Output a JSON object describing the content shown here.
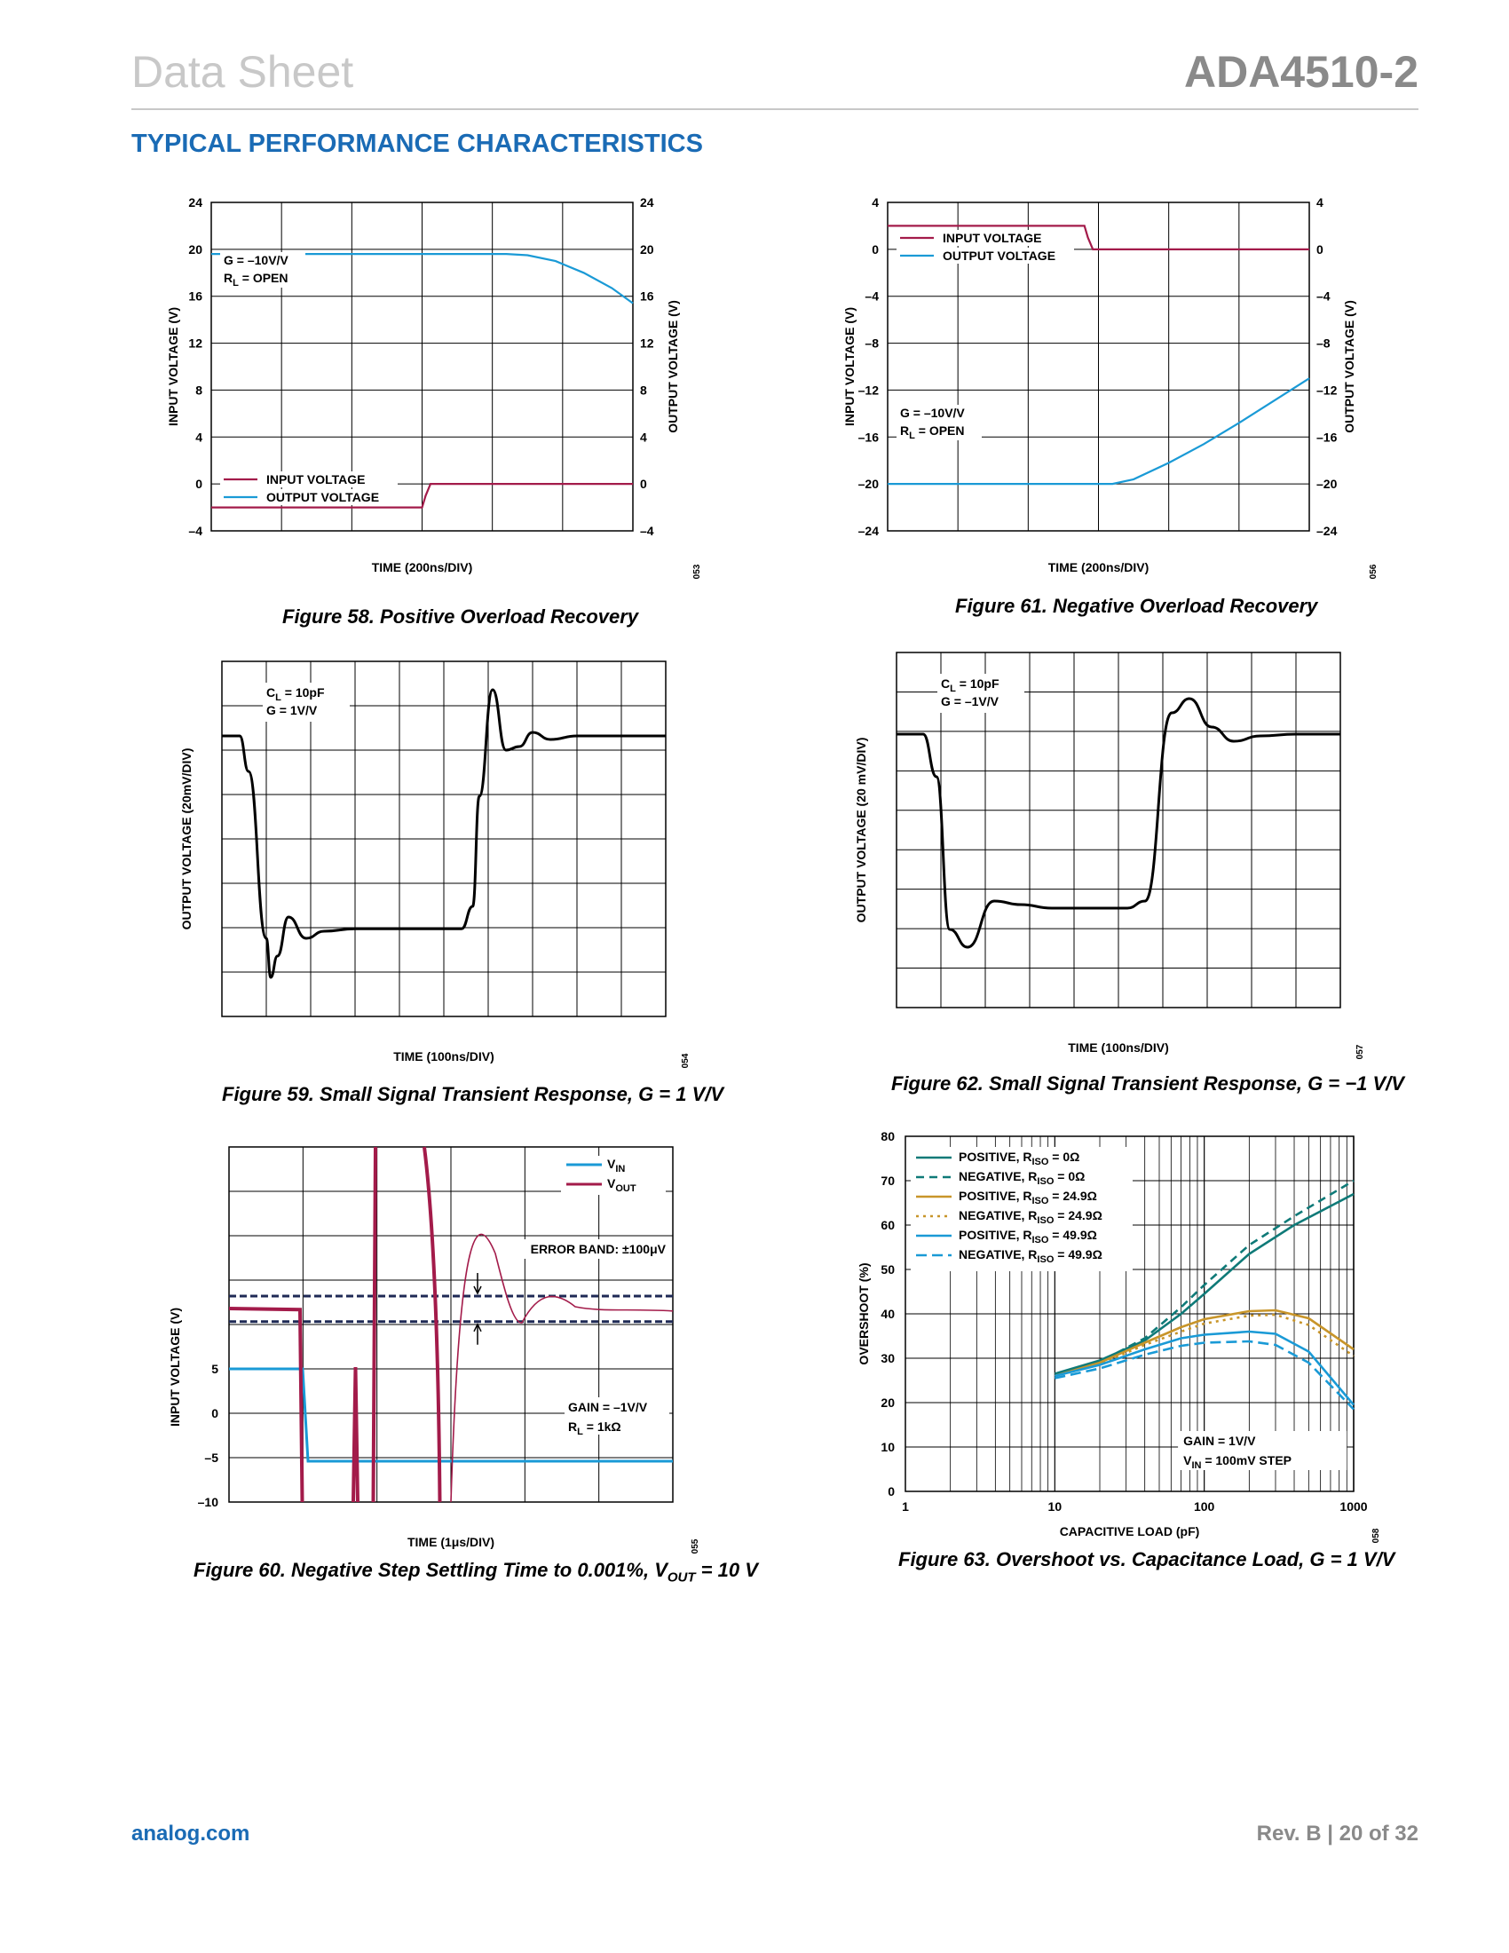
{
  "header": {
    "left": "Data Sheet",
    "right": "ADA4510-2"
  },
  "section_title": "TYPICAL PERFORMANCE CHARACTERISTICS",
  "footer": {
    "left": "analog.com",
    "right": "Rev. B | 20 of 32"
  },
  "colors": {
    "input": "#a31b4a",
    "output": "#1a9ad6",
    "teal": "#0f7a78",
    "gold": "#c8952a",
    "blue": "#1a9ad6",
    "accent": "#1a6bb5"
  },
  "captions": {
    "f58": "Figure 58. Positive Overload Recovery",
    "f59": "Figure 59. Small Signal Transient Response, G = 1 V/V",
    "f60_main": "Figure 60. Negative Step Settling Time to 0.001%, V",
    "f60_sub": "OUT",
    "f60_tail": " = 10 V",
    "f61": "Figure 61. Negative Overload Recovery",
    "f62": "Figure 62. Small Signal Transient Response, G = −1 V/V",
    "f63": "Figure 63. Overshoot vs. Capacitance Load, G = 1 V/V"
  },
  "codes": {
    "f58": "053",
    "f59": "054",
    "f60": "055",
    "f61": "056",
    "f62": "057",
    "f63": "058"
  },
  "chart_data": [
    {
      "id": "f58",
      "type": "line",
      "xlabel": "TIME (200ns/DIV)",
      "ylabel": "INPUT VOLTAGE (V)",
      "y2label": "OUTPUT VOLTAGE (V)",
      "yticks": [
        24,
        20,
        16,
        12,
        8,
        4,
        0,
        -4
      ],
      "ylim": [
        -4,
        24
      ],
      "x_divisions": 6,
      "annot": {
        "g": "G = –10V/V",
        "rl": "R",
        "rl_sub": "L",
        "rl_tail": " = OPEN"
      },
      "legend": [
        "INPUT VOLTAGE",
        "OUTPUT VOLTAGE"
      ],
      "series": [
        {
          "name": "INPUT VOLTAGE",
          "x": [
            0,
            3.0,
            3.05,
            3.12,
            6.0
          ],
          "y": [
            -2.0,
            -2.0,
            -1.0,
            0.0,
            0.0
          ]
        },
        {
          "name": "OUTPUT VOLTAGE",
          "x": [
            0,
            4.2,
            4.5,
            4.9,
            5.3,
            5.7,
            6.0
          ],
          "y": [
            19.6,
            19.6,
            19.5,
            19.0,
            18.0,
            16.7,
            15.4
          ]
        }
      ]
    },
    {
      "id": "f59",
      "type": "line",
      "xlabel": "TIME (100ns/DIV)",
      "ylabel": "OUTPUT VOLTAGE (20mV/DIV)",
      "x_divisions": 10,
      "y_divisions": 8,
      "annot": {
        "cl": "C",
        "cl_sub": "L",
        "cl_tail": " = 10pF",
        "g": "G = 1V/V"
      }
    },
    {
      "id": "f60",
      "type": "line",
      "xlabel": "TIME (1μs/DIV)",
      "ylabel": "INPUT VOLTAGE (V)",
      "yticks": [
        5,
        0,
        -5,
        -10
      ],
      "x_divisions": 6,
      "y_divisions": 8,
      "legend": [
        {
          "base": "V",
          "sub": "IN"
        },
        {
          "base": "V",
          "sub": "OUT"
        }
      ],
      "error_band": "ERROR BAND: ±100μV",
      "annot": {
        "g": "GAIN = –1V/V",
        "rl": "R",
        "rl_sub": "L",
        "rl_tail": " = 1kΩ"
      }
    },
    {
      "id": "f61",
      "type": "line",
      "xlabel": "TIME (200ns/DIV)",
      "ylabel": "INPUT VOLTAGE (V)",
      "y2label": "OUTPUT VOLTAGE (V)",
      "yticks": [
        4,
        0,
        -4,
        -8,
        -12,
        -16,
        -20,
        -24
      ],
      "ylim": [
        -24,
        4
      ],
      "x_divisions": 6,
      "annot": {
        "g": "G = –10V/V",
        "rl": "R",
        "rl_sub": "L",
        "rl_tail": " = OPEN"
      },
      "legend": [
        "INPUT VOLTAGE",
        "OUTPUT VOLTAGE"
      ],
      "series": [
        {
          "name": "INPUT VOLTAGE",
          "x": [
            0,
            2.8,
            2.85,
            2.92,
            6.0
          ],
          "y": [
            2.0,
            2.0,
            1.0,
            0.0,
            0.0
          ]
        },
        {
          "name": "OUTPUT VOLTAGE",
          "x": [
            0,
            3.2,
            3.5,
            4.0,
            4.5,
            5.0,
            5.5,
            6.0
          ],
          "y": [
            -20.0,
            -20.0,
            -19.6,
            -18.2,
            -16.6,
            -14.8,
            -12.9,
            -11.0
          ]
        }
      ]
    },
    {
      "id": "f62",
      "type": "line",
      "xlabel": "TIME (100ns/DIV)",
      "ylabel": "OUTPUT VOLTAGE (20 mV/DIV)",
      "x_divisions": 10,
      "y_divisions": 9,
      "annot": {
        "cl": "C",
        "cl_sub": "L",
        "cl_tail": " = 10pF",
        "g": "G = –1V/V"
      }
    },
    {
      "id": "f63",
      "type": "line",
      "xscale": "log",
      "xlabel": "CAPACITIVE LOAD (pF)",
      "ylabel": "OVERSHOOT (%)",
      "xticks": [
        1,
        10,
        100,
        1000
      ],
      "yticks": [
        80,
        70,
        60,
        50,
        40,
        30,
        20,
        10,
        0
      ],
      "xlim": [
        1,
        1000
      ],
      "ylim": [
        0,
        80
      ],
      "annot": {
        "g": "GAIN = 1V/V",
        "vin": "V",
        "vin_sub": "IN",
        "vin_tail": " = 100mV STEP"
      },
      "series": [
        {
          "name": "POSITIVE, R",
          "sub": "ISO",
          "tail": " = 0Ω",
          "color": "#0f7a78",
          "dash": "",
          "x": [
            10,
            20,
            40,
            70,
            100,
            200,
            400,
            1000
          ],
          "y": [
            26.5,
            29.5,
            34.0,
            40.0,
            44.5,
            53.5,
            60.0,
            67.0
          ]
        },
        {
          "name": "NEGATIVE, R",
          "sub": "ISO",
          "tail": " = 0Ω",
          "color": "#0f7a78",
          "dash": "9,6",
          "x": [
            10,
            20,
            40,
            70,
            100,
            200,
            400,
            1000
          ],
          "y": [
            26.0,
            29.2,
            34.5,
            41.5,
            46.5,
            55.5,
            62.0,
            70.0
          ]
        },
        {
          "name": "POSITIVE, R",
          "sub": "ISO",
          "tail": " = 24.9Ω",
          "color": "#c8952a",
          "dash": "",
          "x": [
            10,
            20,
            40,
            70,
            100,
            200,
            300,
            500,
            1000
          ],
          "y": [
            26.0,
            29.0,
            33.5,
            37.0,
            38.8,
            40.6,
            40.8,
            39.0,
            32.0
          ]
        },
        {
          "name": "NEGATIVE, R",
          "sub": "ISO",
          "tail": " = 24.9Ω",
          "color": "#c8952a",
          "dash": "3,5",
          "x": [
            10,
            20,
            40,
            70,
            100,
            200,
            300,
            500,
            1000
          ],
          "y": [
            26.0,
            28.7,
            33.0,
            36.0,
            37.8,
            39.6,
            39.8,
            37.5,
            30.5
          ]
        },
        {
          "name": "POSITIVE, R",
          "sub": "ISO",
          "tail": " = 49.9Ω",
          "color": "#1a9ad6",
          "dash": "",
          "x": [
            10,
            20,
            40,
            70,
            100,
            200,
            300,
            500,
            1000
          ],
          "y": [
            26.0,
            28.5,
            32.0,
            34.5,
            35.3,
            36.0,
            35.5,
            31.5,
            19.5
          ]
        },
        {
          "name": "NEGATIVE, R",
          "sub": "ISO",
          "tail": " = 49.9Ω",
          "color": "#1a9ad6",
          "dash": "12,6",
          "x": [
            10,
            20,
            40,
            70,
            100,
            200,
            300,
            500,
            1000
          ],
          "y": [
            25.5,
            27.7,
            30.8,
            32.8,
            33.5,
            33.8,
            33.0,
            29.0,
            18.5
          ]
        }
      ]
    }
  ]
}
